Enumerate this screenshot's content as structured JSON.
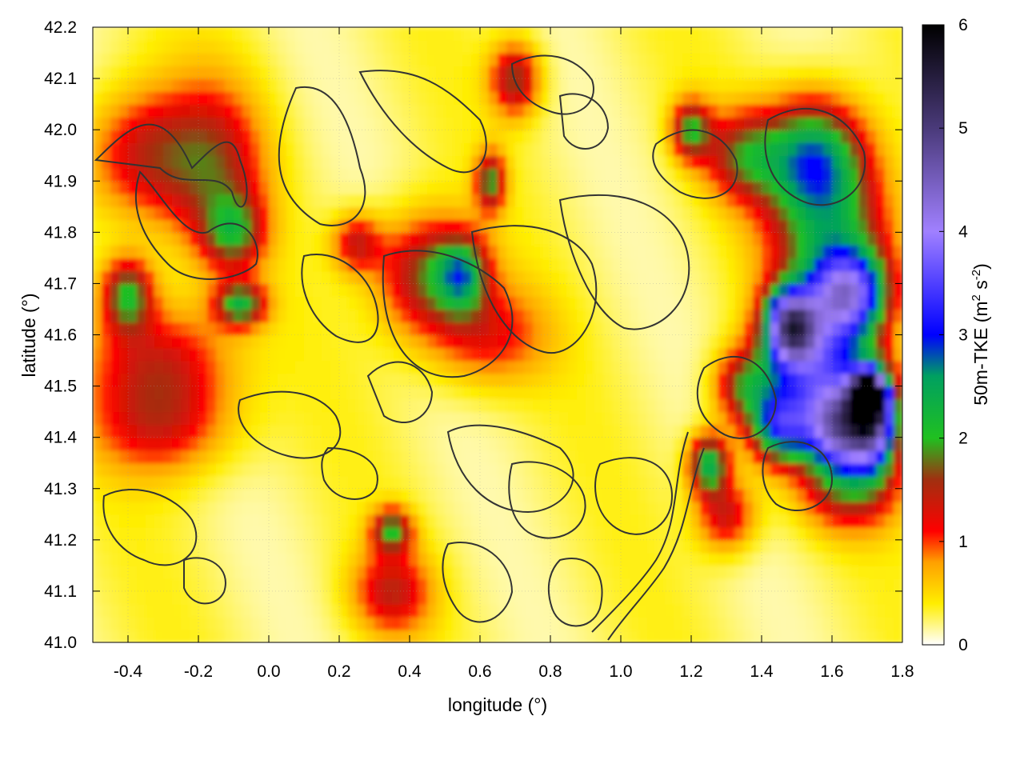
{
  "chart_data": {
    "type": "heatmap",
    "xlabel": "longitude (°)",
    "ylabel": "latitude (°)",
    "xlim": [
      -0.5,
      1.8
    ],
    "ylim": [
      41.0,
      42.2
    ],
    "x_ticks": [
      -0.4,
      -0.2,
      0.0,
      0.2,
      0.4,
      0.6,
      0.8,
      1.0,
      1.2,
      1.4,
      1.6,
      1.8
    ],
    "x_tick_labels": [
      "-0.4",
      "-0.2",
      "0.0",
      "0.2",
      "0.4",
      "0.6",
      "0.8",
      "1.0",
      "1.2",
      "1.4",
      "1.6",
      "1.8"
    ],
    "y_ticks": [
      41.0,
      41.1,
      41.2,
      41.3,
      41.4,
      41.5,
      41.6,
      41.7,
      41.8,
      41.9,
      42.0,
      42.1,
      42.2
    ],
    "y_tick_labels": [
      "41.0",
      "41.1",
      "41.2",
      "41.3",
      "41.4",
      "41.5",
      "41.6",
      "41.7",
      "41.8",
      "41.9",
      "42.0",
      "42.1",
      "42.2"
    ],
    "grid": true,
    "colorbar": {
      "label": "50m-TKE (m",
      "label_sup1": "2",
      "label_mid": " s",
      "label_sup2": "-2",
      "label_end": ")",
      "range": [
        0,
        6
      ],
      "ticks": [
        0,
        1,
        2,
        3,
        4,
        5,
        6
      ],
      "tick_labels": [
        "0",
        "1",
        "2",
        "3",
        "4",
        "5",
        "6"
      ],
      "colormap": [
        {
          "value": 0.0,
          "color": "#ffffff"
        },
        {
          "value": 0.4,
          "color": "#ffee00"
        },
        {
          "value": 0.8,
          "color": "#ffa000"
        },
        {
          "value": 1.1,
          "color": "#ff0000"
        },
        {
          "value": 1.6,
          "color": "#a03010"
        },
        {
          "value": 2.0,
          "color": "#20c020"
        },
        {
          "value": 2.6,
          "color": "#00a060"
        },
        {
          "value": 3.0,
          "color": "#0000ff"
        },
        {
          "value": 4.0,
          "color": "#a080ff"
        },
        {
          "value": 5.0,
          "color": "#4a3a7a"
        },
        {
          "value": 6.0,
          "color": "#000000"
        }
      ]
    },
    "hotspots": [
      {
        "x": -0.35,
        "y": 41.95,
        "amp": 1.2,
        "sx": 0.12,
        "sy": 0.09
      },
      {
        "x": -0.15,
        "y": 41.92,
        "amp": 1.1,
        "sx": 0.1,
        "sy": 0.12
      },
      {
        "x": -0.1,
        "y": 41.8,
        "amp": 1.3,
        "sx": 0.06,
        "sy": 0.05
      },
      {
        "x": -0.4,
        "y": 41.68,
        "amp": 1.7,
        "sx": 0.05,
        "sy": 0.05
      },
      {
        "x": -0.08,
        "y": 41.66,
        "amp": 1.8,
        "sx": 0.05,
        "sy": 0.03
      },
      {
        "x": -0.3,
        "y": 41.55,
        "amp": 1.1,
        "sx": 0.14,
        "sy": 0.08
      },
      {
        "x": -0.3,
        "y": 41.42,
        "amp": 0.9,
        "sx": 0.14,
        "sy": 0.07
      },
      {
        "x": 0.45,
        "y": 41.72,
        "amp": 1.5,
        "sx": 0.1,
        "sy": 0.08
      },
      {
        "x": 0.55,
        "y": 41.72,
        "amp": 1.6,
        "sx": 0.05,
        "sy": 0.05
      },
      {
        "x": 0.25,
        "y": 41.78,
        "amp": 1.1,
        "sx": 0.05,
        "sy": 0.04
      },
      {
        "x": 0.62,
        "y": 41.6,
        "amp": 0.9,
        "sx": 0.12,
        "sy": 0.07
      },
      {
        "x": 0.63,
        "y": 41.9,
        "amp": 1.6,
        "sx": 0.03,
        "sy": 0.04
      },
      {
        "x": 0.7,
        "y": 42.1,
        "amp": 1.4,
        "sx": 0.05,
        "sy": 0.05
      },
      {
        "x": 0.35,
        "y": 41.1,
        "amp": 1.1,
        "sx": 0.08,
        "sy": 0.06
      },
      {
        "x": 0.35,
        "y": 41.22,
        "amp": 1.6,
        "sx": 0.04,
        "sy": 0.03
      },
      {
        "x": 1.2,
        "y": 42.0,
        "amp": 1.6,
        "sx": 0.04,
        "sy": 0.04
      },
      {
        "x": 1.35,
        "y": 41.95,
        "amp": 1.3,
        "sx": 0.08,
        "sy": 0.06
      },
      {
        "x": 1.55,
        "y": 41.95,
        "amp": 2.2,
        "sx": 0.1,
        "sy": 0.08
      },
      {
        "x": 1.6,
        "y": 41.8,
        "amp": 1.7,
        "sx": 0.12,
        "sy": 0.1
      },
      {
        "x": 1.65,
        "y": 41.68,
        "amp": 3.0,
        "sx": 0.08,
        "sy": 0.06
      },
      {
        "x": 1.48,
        "y": 41.62,
        "amp": 3.4,
        "sx": 0.05,
        "sy": 0.05
      },
      {
        "x": 1.55,
        "y": 41.55,
        "amp": 2.6,
        "sx": 0.1,
        "sy": 0.08
      },
      {
        "x": 1.62,
        "y": 41.42,
        "amp": 3.5,
        "sx": 0.07,
        "sy": 0.06
      },
      {
        "x": 1.7,
        "y": 41.48,
        "amp": 5.2,
        "sx": 0.03,
        "sy": 0.03
      },
      {
        "x": 1.72,
        "y": 41.44,
        "amp": 3.5,
        "sx": 0.05,
        "sy": 0.07
      },
      {
        "x": 1.45,
        "y": 41.42,
        "amp": 2.4,
        "sx": 0.06,
        "sy": 0.05
      },
      {
        "x": 1.25,
        "y": 41.35,
        "amp": 2.2,
        "sx": 0.04,
        "sy": 0.04
      },
      {
        "x": 1.35,
        "y": 41.5,
        "amp": 1.4,
        "sx": 0.06,
        "sy": 0.05
      },
      {
        "x": 1.3,
        "y": 41.25,
        "amp": 1.2,
        "sx": 0.06,
        "sy": 0.05
      },
      {
        "x": 1.65,
        "y": 41.3,
        "amp": 1.2,
        "sx": 0.1,
        "sy": 0.06
      }
    ]
  }
}
